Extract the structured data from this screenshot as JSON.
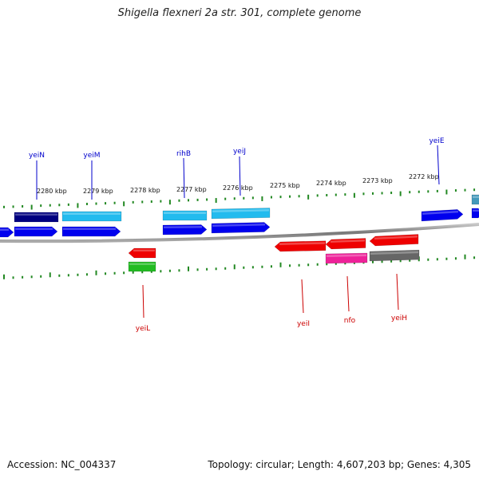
{
  "title": "Shigella flexneri 2a str. 301, complete genome",
  "footer": {
    "accession": "Accession: NC_004337",
    "topology": "Topology: circular; Length: 4,607,203 bp; Genes: 4,305"
  },
  "ticks": [
    "2280 kbp",
    "2279 kbp",
    "2278 kbp",
    "2277 kbp",
    "2276 kbp",
    "2275 kbp",
    "2274 kbp",
    "2273 kbp",
    "2272 kbp"
  ],
  "colors": {
    "forward": "#0000ee",
    "forward_dark": "#000080",
    "forward_light": "#22bbee",
    "reverse": "#ee0000",
    "magenta": "#ee2299",
    "green": "#22bb22",
    "grey": "#666666",
    "tick": "#228822",
    "backbone": "#888888"
  },
  "genes_top": [
    "yeiN",
    "yeiM",
    "rihB",
    "yeiJ",
    "yeiE"
  ],
  "genes_bottom": [
    "yeiL",
    "yeiI",
    "nfo",
    "yeiH"
  ]
}
